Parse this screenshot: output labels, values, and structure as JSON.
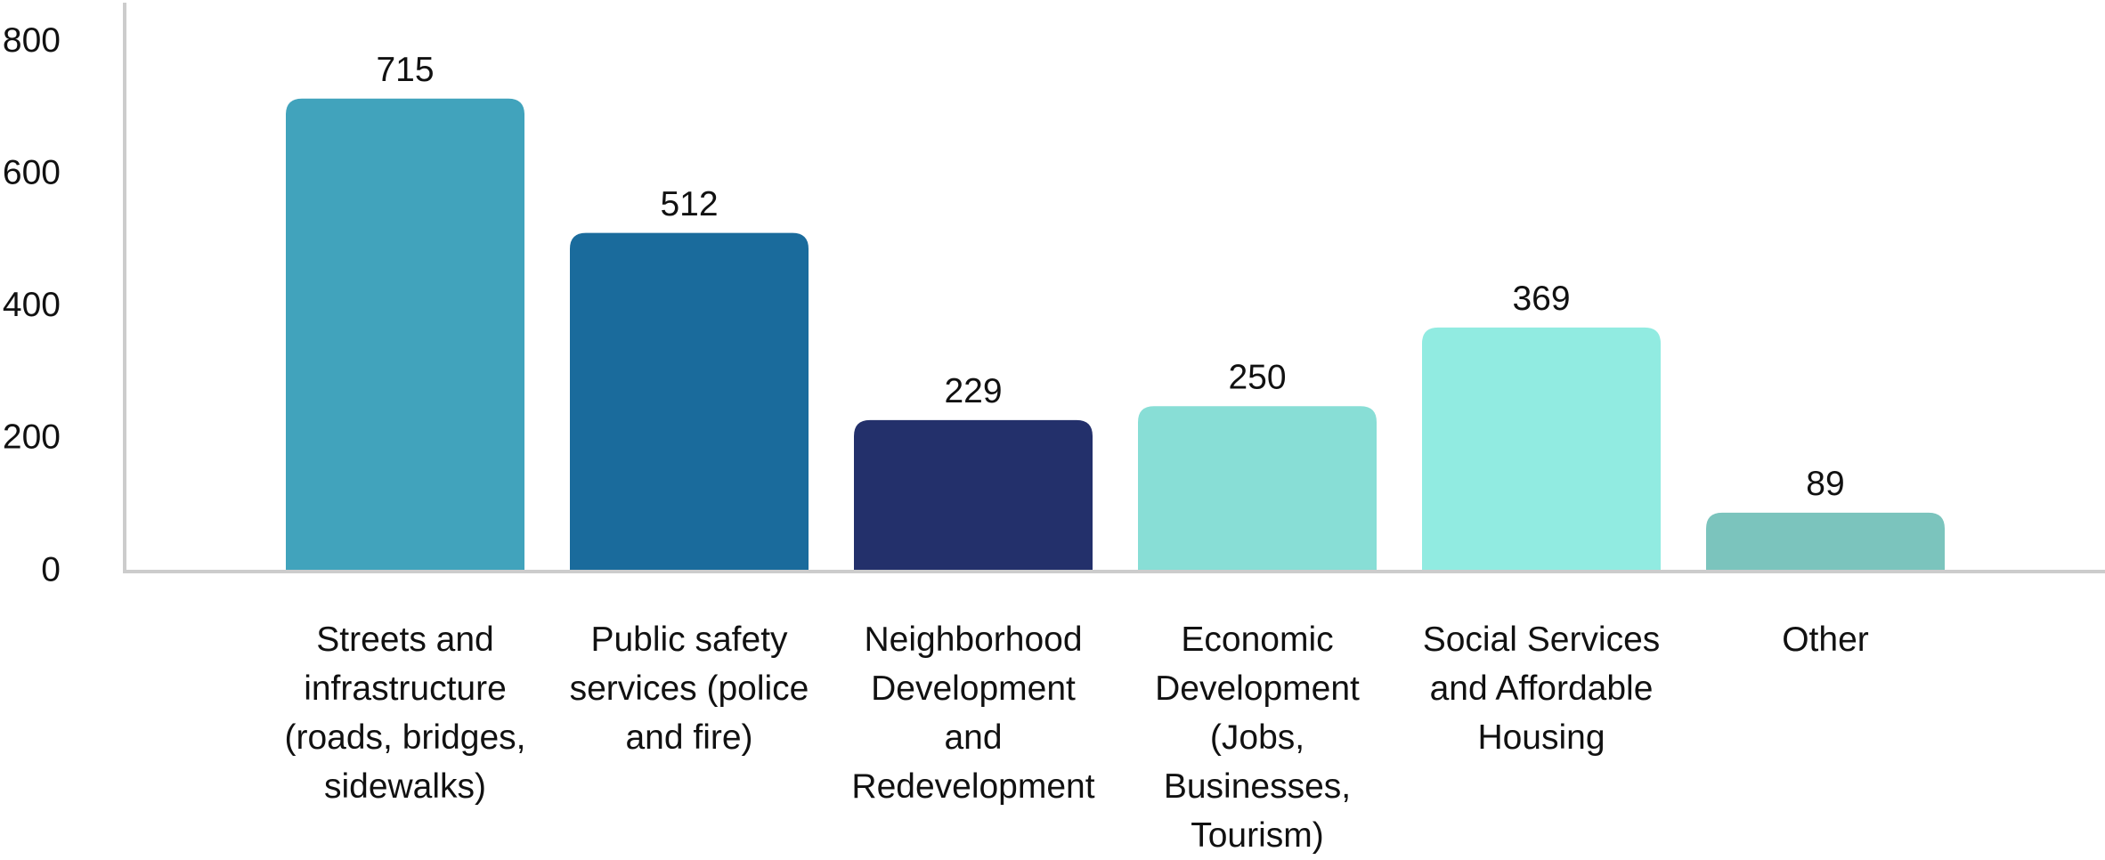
{
  "chart_data": {
    "type": "bar",
    "categories": [
      "Streets and infrastructure (roads, bridges, sidewalks)",
      "Public safety services (police and fire)",
      "Neighborhood Development and Redevelopment",
      "Economic Development (Jobs, Businesses, Tourism)",
      "Social Services and Affordable Housing",
      "Other"
    ],
    "values": [
      715,
      512,
      229,
      250,
      369,
      89
    ],
    "colors": [
      "#41a3bc",
      "#1a6b9c",
      "#23306b",
      "#88ded6",
      "#91ebe1",
      "#7bc4bd"
    ],
    "ylim": [
      0,
      860
    ],
    "yticks": [
      0,
      200,
      400,
      600,
      800
    ],
    "grid": false
  }
}
